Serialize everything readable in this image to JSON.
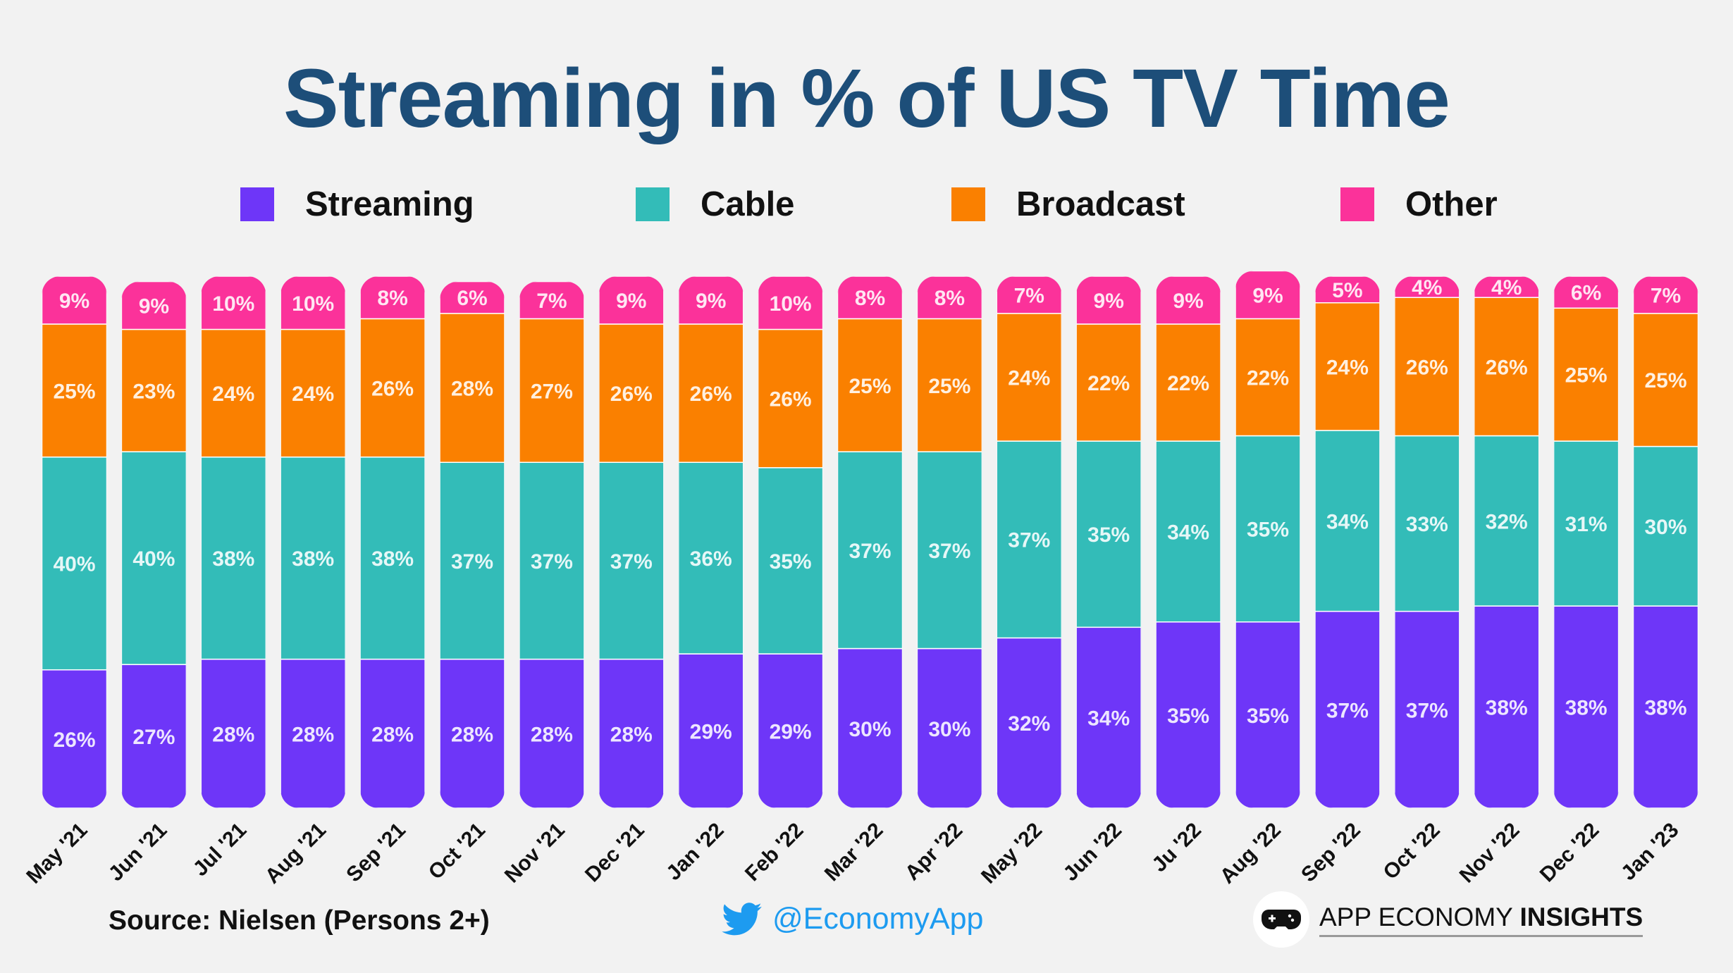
{
  "chart_data": {
    "type": "bar",
    "stacked": true,
    "title": "Streaming in % of US TV Time",
    "categories": [
      "May '21",
      "Jun '21",
      "Jul '21",
      "Aug '21",
      "Sep '21",
      "Oct '21",
      "Nov '21",
      "Dec '21",
      "Jan '22",
      "Feb '22",
      "Mar '22",
      "Apr '22",
      "May '22",
      "Jun '22",
      "Ju '22",
      "Aug '22",
      "Sep '22",
      "Oct '22",
      "Nov '22",
      "Dec '22",
      "Jan '23"
    ],
    "series": [
      {
        "name": "Streaming",
        "color": "#6e36f8",
        "values": [
          26,
          27,
          28,
          28,
          28,
          28,
          28,
          28,
          29,
          29,
          30,
          30,
          32,
          34,
          35,
          35,
          37,
          37,
          38,
          38,
          38
        ]
      },
      {
        "name": "Cable",
        "color": "#33bcb8",
        "values": [
          40,
          40,
          38,
          38,
          38,
          37,
          37,
          37,
          36,
          35,
          37,
          37,
          37,
          35,
          34,
          35,
          34,
          33,
          32,
          31,
          30
        ]
      },
      {
        "name": "Broadcast",
        "color": "#fa8000",
        "values": [
          25,
          23,
          24,
          24,
          26,
          28,
          27,
          26,
          26,
          26,
          25,
          25,
          24,
          22,
          22,
          22,
          24,
          26,
          26,
          25,
          25
        ]
      },
      {
        "name": "Other",
        "color": "#fb329a",
        "values": [
          9,
          9,
          10,
          10,
          8,
          6,
          7,
          9,
          9,
          10,
          8,
          8,
          7,
          9,
          9,
          9,
          5,
          4,
          4,
          6,
          7
        ]
      }
    ],
    "legend_position": "top",
    "grid": false
  },
  "legend": [
    {
      "label": "Streaming",
      "color": "#6e36f8"
    },
    {
      "label": "Cable",
      "color": "#33bcb8"
    },
    {
      "label": "Broadcast",
      "color": "#fa8000"
    },
    {
      "label": "Other",
      "color": "#fb329a"
    }
  ],
  "footer": {
    "source": "Source: Nielsen (Persons 2+)",
    "twitter_icon": "twitter-bird-icon",
    "twitter_handle": "@EconomyApp",
    "brand_icon": "game-controller-icon",
    "brand_regular": "APP ECONOMY ",
    "brand_bold": "INSIGHTS"
  },
  "colors": {
    "title": "#1d4e79",
    "background": "#f2f2f2"
  }
}
